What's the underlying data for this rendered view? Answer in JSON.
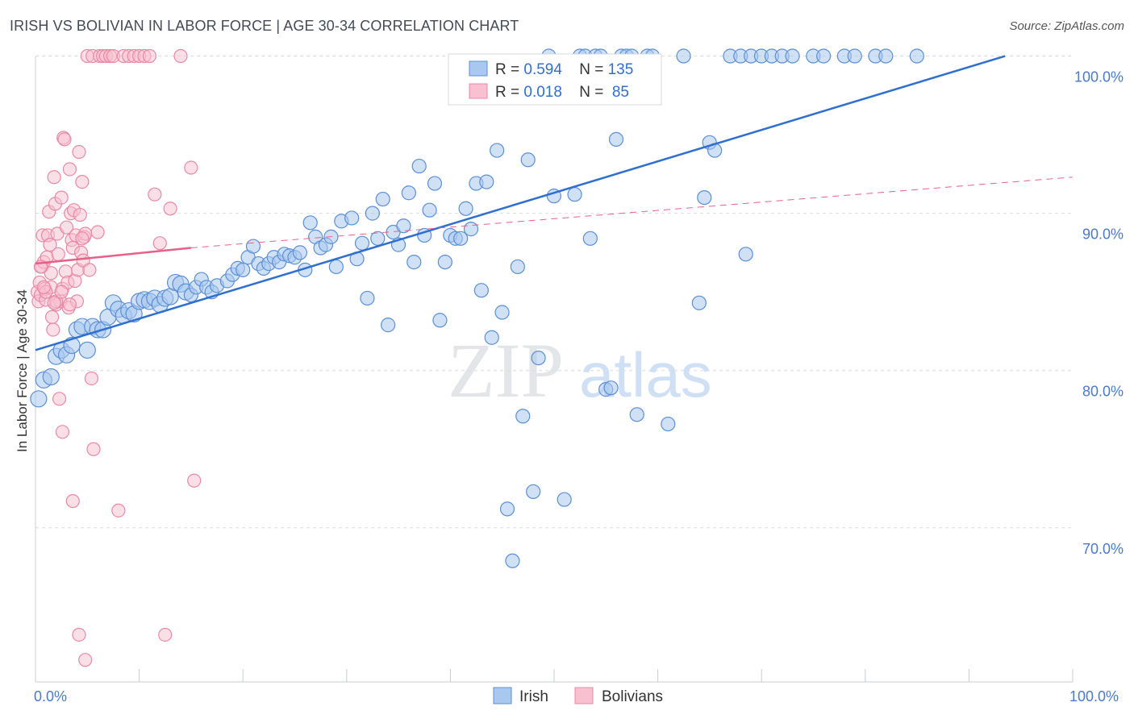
{
  "header": {
    "title": "IRISH VS BOLIVIAN IN LABOR FORCE | AGE 30-34 CORRELATION CHART",
    "source": "Source: ZipAtlas.com"
  },
  "watermark": {
    "zip": "ZIP",
    "atlas": "atlas"
  },
  "colors": {
    "irish_fill": "#a9c8ef",
    "irish_stroke": "#5b8fd6",
    "irish_line": "#2f6fcf",
    "bolivian_fill": "#f8c0d0",
    "bolivian_stroke": "#e889a6",
    "bolivian_line": "#e8608a",
    "grid": "#d9dde3",
    "tick_text": "#4a7ac9"
  },
  "legend_top": {
    "irish": {
      "r_label": "R = ",
      "r_value": "0.594",
      "n_label": "N = ",
      "n_value": "135"
    },
    "bolivian": {
      "r_label": "R = ",
      "r_value": "0.018",
      "n_label": "N = ",
      "n_value": " 85"
    }
  },
  "legend_bottom": {
    "irish": "Irish",
    "bolivian": "Bolivians"
  },
  "chart_data": {
    "type": "scatter",
    "title": "IRISH VS BOLIVIAN IN LABOR FORCE | AGE 30-34 CORRELATION CHART",
    "xlabel": "",
    "ylabel": "In Labor Force | Age 30-34",
    "xlim": [
      0,
      105
    ],
    "ylim": [
      60.2,
      101.0
    ],
    "x_tick_labels": {
      "left": "0.0%",
      "right": "100.0%"
    },
    "y_ticks": [
      {
        "value": 70,
        "label": "70.0%"
      },
      {
        "value": 80,
        "label": "80.0%"
      },
      {
        "value": 90,
        "label": "90.0%"
      },
      {
        "value": 100,
        "label": "100.0%"
      }
    ],
    "grid": true,
    "series": [
      {
        "name": "Irish",
        "r": 0.594,
        "n": 135,
        "trend": {
          "x0": 0,
          "y0": 81.3,
          "x1": 93.5,
          "y1": 100.0,
          "style": "solid"
        },
        "points": [
          [
            0.3,
            78.2
          ],
          [
            0.8,
            79.4
          ],
          [
            1.5,
            79.6
          ],
          [
            2.0,
            80.9
          ],
          [
            2.5,
            81.3
          ],
          [
            3.0,
            81.0
          ],
          [
            3.5,
            81.6
          ],
          [
            4.0,
            82.6
          ],
          [
            4.5,
            82.8
          ],
          [
            5.0,
            81.3
          ],
          [
            5.5,
            82.8
          ],
          [
            6.0,
            82.6
          ],
          [
            6.5,
            82.6
          ],
          [
            7.0,
            83.4
          ],
          [
            7.5,
            84.3
          ],
          [
            8.0,
            83.9
          ],
          [
            8.5,
            83.5
          ],
          [
            9.0,
            83.8
          ],
          [
            9.5,
            83.6
          ],
          [
            10.0,
            84.4
          ],
          [
            10.5,
            84.5
          ],
          [
            11.0,
            84.4
          ],
          [
            11.5,
            84.6
          ],
          [
            12.0,
            84.2
          ],
          [
            12.5,
            84.6
          ],
          [
            13.0,
            84.7
          ],
          [
            13.5,
            85.6
          ],
          [
            14.0,
            85.5
          ],
          [
            14.5,
            85.0
          ],
          [
            15.0,
            84.8
          ],
          [
            15.5,
            85.3
          ],
          [
            16.0,
            85.8
          ],
          [
            16.5,
            85.3
          ],
          [
            17.0,
            85.0
          ],
          [
            17.5,
            85.4
          ],
          [
            18.5,
            85.7
          ],
          [
            19.0,
            86.1
          ],
          [
            19.5,
            86.5
          ],
          [
            20.0,
            86.4
          ],
          [
            20.5,
            87.2
          ],
          [
            21.0,
            87.9
          ],
          [
            21.5,
            86.8
          ],
          [
            22.0,
            86.5
          ],
          [
            22.5,
            86.8
          ],
          [
            23.0,
            87.2
          ],
          [
            23.5,
            86.9
          ],
          [
            24.0,
            87.4
          ],
          [
            24.5,
            87.3
          ],
          [
            25.0,
            87.2
          ],
          [
            25.5,
            87.5
          ],
          [
            26.0,
            86.4
          ],
          [
            26.5,
            89.4
          ],
          [
            27.0,
            88.5
          ],
          [
            27.5,
            87.8
          ],
          [
            28.0,
            88.0
          ],
          [
            28.5,
            88.5
          ],
          [
            29.0,
            86.6
          ],
          [
            29.5,
            89.5
          ],
          [
            30.5,
            89.7
          ],
          [
            31.0,
            87.1
          ],
          [
            31.5,
            88.1
          ],
          [
            32.0,
            84.6
          ],
          [
            32.5,
            90.0
          ],
          [
            33.0,
            88.4
          ],
          [
            33.5,
            90.9
          ],
          [
            34.0,
            82.9
          ],
          [
            34.5,
            88.8
          ],
          [
            35.0,
            88.0
          ],
          [
            35.5,
            89.2
          ],
          [
            36.0,
            91.3
          ],
          [
            36.5,
            86.9
          ],
          [
            37.0,
            93.0
          ],
          [
            37.5,
            88.6
          ],
          [
            38.0,
            90.2
          ],
          [
            38.5,
            91.9
          ],
          [
            39.0,
            83.2
          ],
          [
            39.5,
            86.9
          ],
          [
            40.0,
            88.6
          ],
          [
            40.5,
            88.4
          ],
          [
            41.0,
            88.4
          ],
          [
            41.5,
            90.3
          ],
          [
            42.0,
            89.0
          ],
          [
            42.5,
            91.9
          ],
          [
            43.0,
            85.1
          ],
          [
            43.5,
            92.0
          ],
          [
            44.0,
            82.1
          ],
          [
            44.5,
            94.0
          ],
          [
            45.0,
            83.7
          ],
          [
            45.5,
            71.2
          ],
          [
            46.0,
            67.9
          ],
          [
            46.5,
            86.6
          ],
          [
            47.0,
            77.1
          ],
          [
            47.5,
            93.4
          ],
          [
            48.0,
            72.3
          ],
          [
            48.5,
            80.8
          ],
          [
            49.0,
            97.5
          ],
          [
            49.5,
            100.0
          ],
          [
            50.0,
            91.1
          ],
          [
            51.0,
            71.8
          ],
          [
            52.0,
            91.2
          ],
          [
            52.5,
            100.0
          ],
          [
            53.0,
            100.0
          ],
          [
            53.5,
            88.4
          ],
          [
            54.0,
            100.0
          ],
          [
            54.5,
            100.0
          ],
          [
            55.0,
            78.8
          ],
          [
            55.5,
            78.9
          ],
          [
            56.0,
            94.7
          ],
          [
            56.5,
            100.0
          ],
          [
            57.0,
            100.0
          ],
          [
            57.5,
            100.0
          ],
          [
            58.0,
            77.2
          ],
          [
            59.0,
            100.0
          ],
          [
            59.5,
            100.0
          ],
          [
            61.0,
            76.6
          ],
          [
            62.5,
            100.0
          ],
          [
            64.0,
            84.3
          ],
          [
            64.5,
            91.0
          ],
          [
            65.0,
            94.5
          ],
          [
            65.5,
            94.0
          ],
          [
            67.0,
            100.0
          ],
          [
            68.0,
            100.0
          ],
          [
            68.5,
            87.4
          ],
          [
            69.0,
            100.0
          ],
          [
            70.0,
            100.0
          ],
          [
            71.0,
            100.0
          ],
          [
            72.0,
            100.0
          ],
          [
            73.0,
            100.0
          ],
          [
            75.0,
            100.0
          ],
          [
            76.0,
            100.0
          ],
          [
            78.0,
            100.0
          ],
          [
            79.0,
            100.0
          ],
          [
            81.0,
            100.0
          ],
          [
            82.0,
            100.0
          ],
          [
            85.0,
            100.0
          ]
        ]
      },
      {
        "name": "Bolivians",
        "r": 0.018,
        "n": 85,
        "trend": {
          "x0": 0,
          "y0": 86.8,
          "x1": 15.0,
          "y1": 87.8,
          "style": "solid",
          "extension": {
            "x0": 15.0,
            "y0": 87.8,
            "x1": 100,
            "y1": 92.3,
            "style": "dashed"
          }
        },
        "points": [
          [
            0.2,
            85.0
          ],
          [
            0.3,
            84.4
          ],
          [
            0.4,
            85.6
          ],
          [
            0.5,
            84.8
          ],
          [
            0.6,
            86.6
          ],
          [
            0.7,
            88.6
          ],
          [
            0.8,
            86.9
          ],
          [
            0.9,
            85.2
          ],
          [
            1.0,
            84.5
          ],
          [
            1.1,
            87.2
          ],
          [
            1.2,
            88.6
          ],
          [
            1.3,
            90.1
          ],
          [
            1.4,
            88.0
          ],
          [
            1.5,
            85.3
          ],
          [
            1.6,
            83.4
          ],
          [
            1.7,
            82.6
          ],
          [
            1.8,
            92.3
          ],
          [
            1.9,
            90.6
          ],
          [
            2.0,
            84.2
          ],
          [
            2.1,
            88.7
          ],
          [
            2.2,
            87.4
          ],
          [
            2.3,
            78.2
          ],
          [
            2.4,
            84.4
          ],
          [
            2.5,
            91.0
          ],
          [
            2.6,
            85.2
          ],
          [
            2.7,
            94.8
          ],
          [
            2.8,
            94.7
          ],
          [
            2.9,
            86.3
          ],
          [
            3.0,
            89.1
          ],
          [
            3.1,
            85.6
          ],
          [
            3.2,
            84.0
          ],
          [
            3.3,
            92.8
          ],
          [
            3.4,
            90.0
          ],
          [
            3.5,
            88.3
          ],
          [
            3.6,
            87.8
          ],
          [
            3.7,
            90.2
          ],
          [
            3.8,
            85.7
          ],
          [
            3.9,
            88.6
          ],
          [
            4.0,
            84.4
          ],
          [
            4.1,
            86.4
          ],
          [
            4.2,
            93.9
          ],
          [
            4.3,
            89.9
          ],
          [
            4.4,
            87.5
          ],
          [
            4.5,
            92.0
          ],
          [
            4.6,
            87.0
          ],
          [
            4.7,
            88.5
          ],
          [
            4.8,
            88.7
          ],
          [
            5.0,
            100.0
          ],
          [
            5.2,
            86.4
          ],
          [
            5.4,
            79.5
          ],
          [
            5.5,
            100.0
          ],
          [
            5.6,
            75.0
          ],
          [
            6.0,
            88.8
          ],
          [
            6.2,
            100.0
          ],
          [
            6.5,
            100.0
          ],
          [
            6.8,
            100.0
          ],
          [
            7.2,
            100.0
          ],
          [
            7.5,
            100.0
          ],
          [
            8.0,
            71.1
          ],
          [
            8.5,
            100.0
          ],
          [
            9.0,
            100.0
          ],
          [
            9.5,
            100.0
          ],
          [
            10.0,
            100.0
          ],
          [
            10.5,
            100.0
          ],
          [
            11.0,
            100.0
          ],
          [
            11.5,
            91.2
          ],
          [
            12.0,
            88.1
          ],
          [
            12.5,
            63.2
          ],
          [
            13.0,
            90.3
          ],
          [
            14.0,
            100.0
          ],
          [
            15.0,
            92.9
          ],
          [
            15.3,
            73.0
          ],
          [
            2.6,
            76.1
          ],
          [
            3.6,
            71.7
          ],
          [
            4.2,
            63.2
          ],
          [
            4.8,
            61.6
          ],
          [
            1.0,
            85.0
          ],
          [
            1.5,
            86.2
          ],
          [
            2.0,
            84.4
          ],
          [
            2.5,
            85.0
          ],
          [
            0.5,
            86.6
          ],
          [
            1.8,
            84.3
          ],
          [
            3.3,
            84.2
          ],
          [
            4.5,
            88.4
          ],
          [
            0.8,
            85.3
          ]
        ]
      }
    ]
  }
}
